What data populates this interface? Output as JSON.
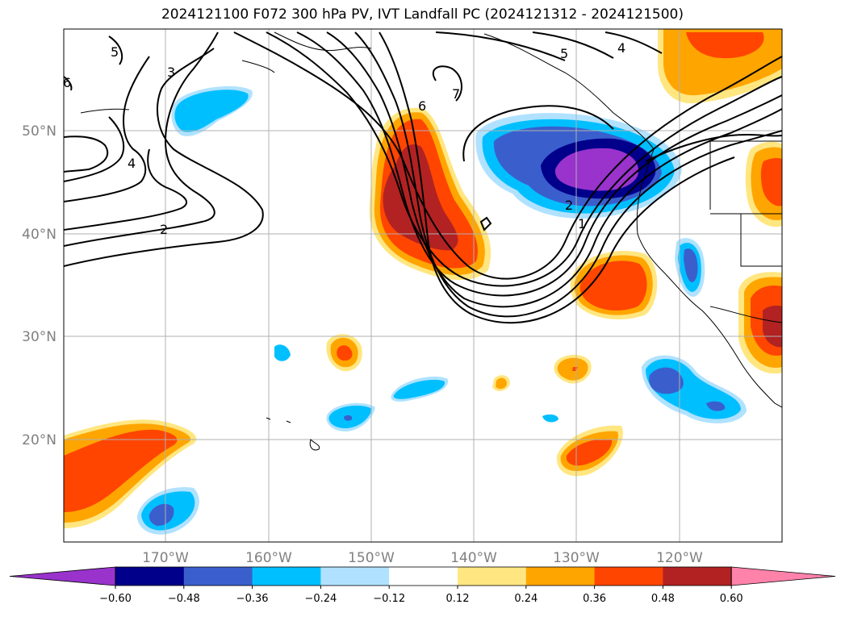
{
  "title": "2024121100 F072 300 hPa PV, IVT Landfall PC (2024121312 - 2024121500)",
  "latitude_labels": [
    "50°N",
    "40°N",
    "30°N",
    "20°N"
  ],
  "longitude_labels": [
    "170°W",
    "160°W",
    "150°W",
    "140°W",
    "130°W",
    "120°W"
  ],
  "colorbar": {
    "ticks": [
      "−0.60",
      "−0.48",
      "−0.36",
      "−0.24",
      "−0.12",
      "0.12",
      "0.24",
      "0.36",
      "0.48",
      "0.60"
    ],
    "colors": [
      "#9933cc",
      "#00008b",
      "#3a5fcd",
      "#00bfff",
      "#b0e2ff",
      "#ffffff",
      "#ffe680",
      "#ffa500",
      "#ff4500",
      "#b22222",
      "#ff82ab"
    ]
  },
  "pv_contour_labels": [
    "5",
    "3",
    "6",
    "4",
    "2",
    "6",
    "7",
    "5",
    "4",
    "1",
    "2"
  ],
  "colors": {
    "grid": "#b0b0b0",
    "contour": "#000000",
    "coast": "#000000"
  }
}
